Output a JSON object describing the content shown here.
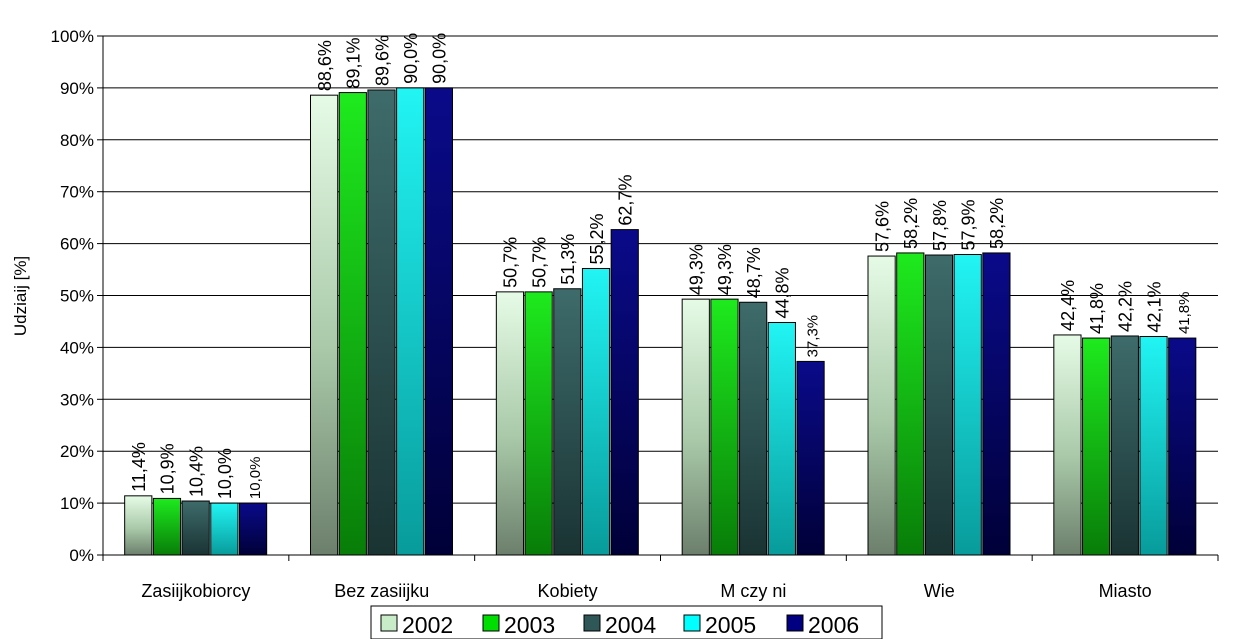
{
  "chart_data": {
    "type": "bar",
    "ylabel": "Udziaĳ [%]",
    "xlabel": "",
    "title": "",
    "ylim": [
      0,
      100
    ],
    "yticks": [
      "0%",
      "10%",
      "20%",
      "30%",
      "40%",
      "50%",
      "60%",
      "70%",
      "80%",
      "90%",
      "100%"
    ],
    "categories": [
      "Zasiĳkobiorcy",
      "Bez zasiĳku",
      "Kobiety",
      "M czy ni",
      "Wie",
      "Miasto"
    ],
    "series": [
      {
        "name": "2002",
        "values": [
          11.4,
          88.6,
          50.7,
          49.3,
          57.6,
          42.4
        ],
        "labels": [
          "11,4%",
          "88,6%",
          "50,7%",
          "49,3%",
          "57,6%",
          "42,4%"
        ]
      },
      {
        "name": "2003",
        "values": [
          10.9,
          89.1,
          50.7,
          49.3,
          58.2,
          41.8
        ],
        "labels": [
          "10,9%",
          "89,1%",
          "50,7%",
          "49,3%",
          "58,2%",
          "41,8%"
        ]
      },
      {
        "name": "2004",
        "values": [
          10.4,
          89.6,
          51.3,
          48.7,
          57.8,
          42.2
        ],
        "labels": [
          "10,4%",
          "89,6%",
          "51,3%",
          "48,7%",
          "57,8%",
          "42,2%"
        ]
      },
      {
        "name": "2005",
        "values": [
          10.0,
          90.0,
          55.2,
          44.8,
          57.9,
          42.1
        ],
        "labels": [
          "10,0%",
          "90,0%",
          "55,2%",
          "44,8%",
          "57,9%",
          "42,1%"
        ]
      },
      {
        "name": "2006",
        "values": [
          10.0,
          90.0,
          62.7,
          37.3,
          58.2,
          41.8
        ],
        "labels": [
          "10,0%",
          "90,0%",
          "62,7%",
          "37,3%",
          "58,2%",
          "41,8%"
        ]
      }
    ],
    "grid": true,
    "legend": "bottom"
  }
}
